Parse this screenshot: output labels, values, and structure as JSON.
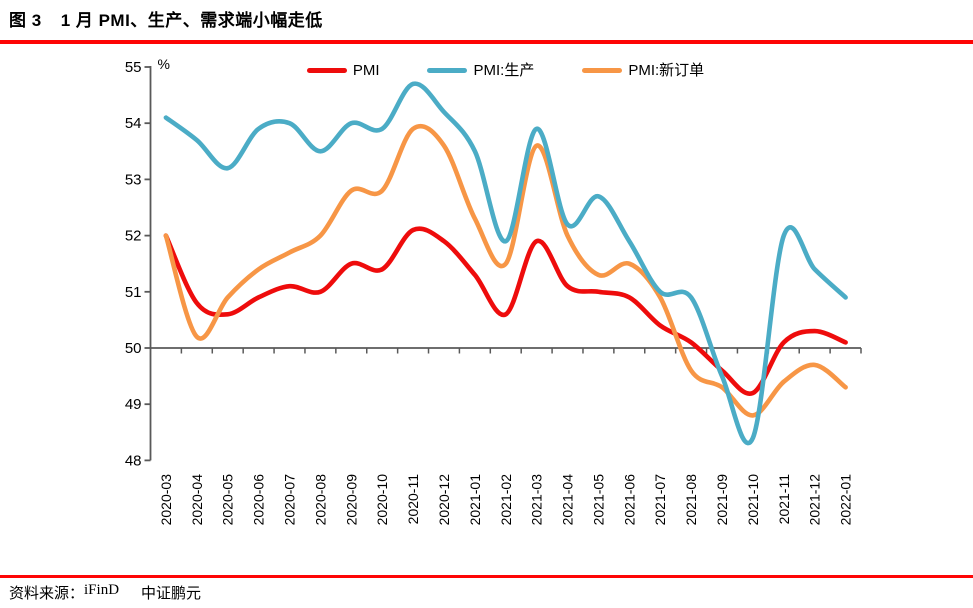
{
  "header": {
    "figure_label": "图 3",
    "title": "1 月 PMI、生产、需求端小幅走低"
  },
  "footer": {
    "source_label": "资料来源：",
    "source_1": "iFinD",
    "source_2": "中证鹏元"
  },
  "colors": {
    "rule_red": "#fe0505",
    "axis_gray": "#595959",
    "text_black": "#000000"
  },
  "chart_data": {
    "type": "line",
    "unit_label": "%",
    "grid": false,
    "smooth": true,
    "legend_position": "top",
    "ylim": [
      48,
      55
    ],
    "yticks": [
      55,
      54,
      53,
      52,
      51,
      50,
      49,
      48
    ],
    "baseline_value": 50,
    "x": [
      "2020-03",
      "2020-04",
      "2020-05",
      "2020-06",
      "2020-07",
      "2020-08",
      "2020-09",
      "2020-10",
      "2020-11",
      "2020-12",
      "2021-01",
      "2021-02",
      "2021-03",
      "2021-04",
      "2021-05",
      "2021-06",
      "2021-07",
      "2021-08",
      "2021-09",
      "2021-10",
      "2021-11",
      "2021-12",
      "2022-01"
    ],
    "series": [
      {
        "key": "pmi",
        "name": "PMI",
        "color": "#ee0c0c",
        "values": [
          52.0,
          50.8,
          50.6,
          50.9,
          51.1,
          51.0,
          51.5,
          51.4,
          52.1,
          51.9,
          51.3,
          50.6,
          51.9,
          51.1,
          51.0,
          50.9,
          50.4,
          50.1,
          49.6,
          49.2,
          50.1,
          50.3,
          50.1
        ]
      },
      {
        "key": "production",
        "name": "PMI:生产",
        "color": "#4bacc6",
        "values": [
          54.1,
          53.7,
          53.2,
          53.9,
          54.0,
          53.5,
          54.0,
          53.9,
          54.7,
          54.2,
          53.5,
          51.9,
          53.9,
          52.2,
          52.7,
          51.9,
          51.0,
          50.9,
          49.5,
          48.4,
          52.0,
          51.4,
          50.9
        ]
      },
      {
        "key": "new_orders",
        "name": "PMI:新订单",
        "color": "#f79646",
        "values": [
          52.0,
          50.2,
          50.9,
          51.4,
          51.7,
          52.0,
          52.8,
          52.8,
          53.9,
          53.6,
          52.3,
          51.5,
          53.6,
          52.0,
          51.3,
          51.5,
          50.9,
          49.6,
          49.3,
          48.8,
          49.4,
          49.7,
          49.3
        ]
      }
    ],
    "draw_order": [
      0,
      2,
      1
    ]
  }
}
